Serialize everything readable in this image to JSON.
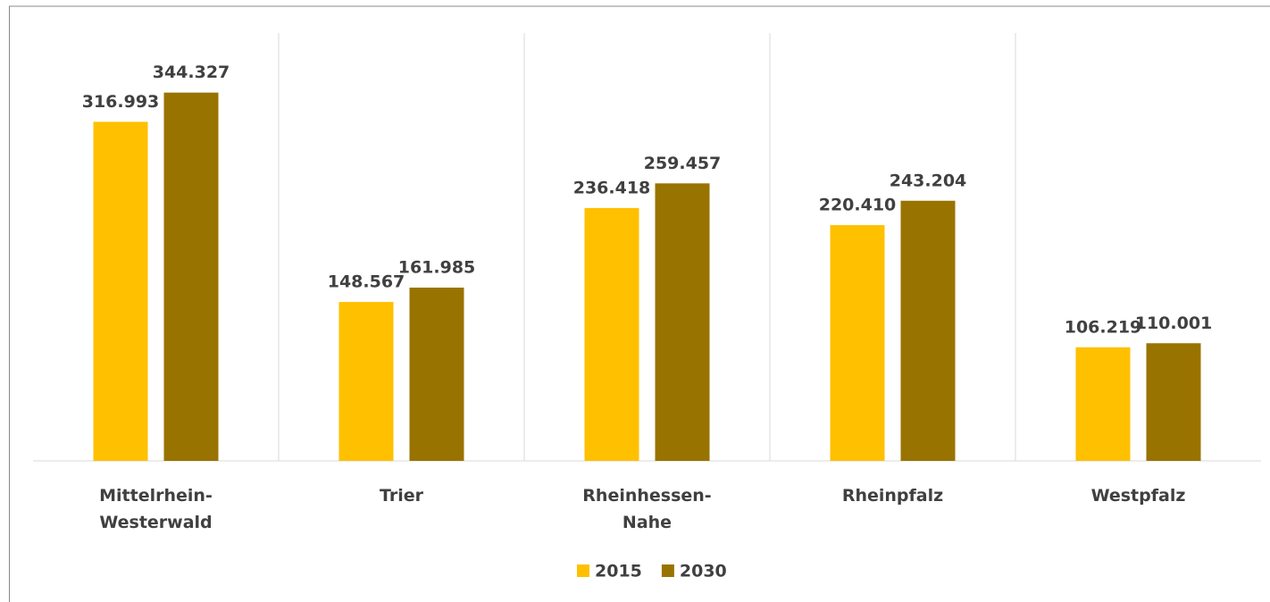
{
  "chart_data": {
    "type": "bar",
    "categories": [
      "Mittelrhein-Westerwald",
      "Trier",
      "Rheinhessen-Nahe",
      "Rheinpfalz",
      "Westpfalz"
    ],
    "series": [
      {
        "name": "2015",
        "color": "#ffc000",
        "values": [
          316993,
          148567,
          236418,
          220410,
          106219
        ],
        "value_labels": [
          "316.993",
          "148.567",
          "236.418",
          "220.410",
          "106.219"
        ]
      },
      {
        "name": "2030",
        "color": "#997300",
        "values": [
          344327,
          161985,
          259457,
          243204,
          110001
        ],
        "value_labels": [
          "344.327",
          "161.985",
          "259.457",
          "243.204",
          "110.001"
        ]
      }
    ],
    "ylim": [
      0,
      400000
    ],
    "legend": "bottom"
  }
}
